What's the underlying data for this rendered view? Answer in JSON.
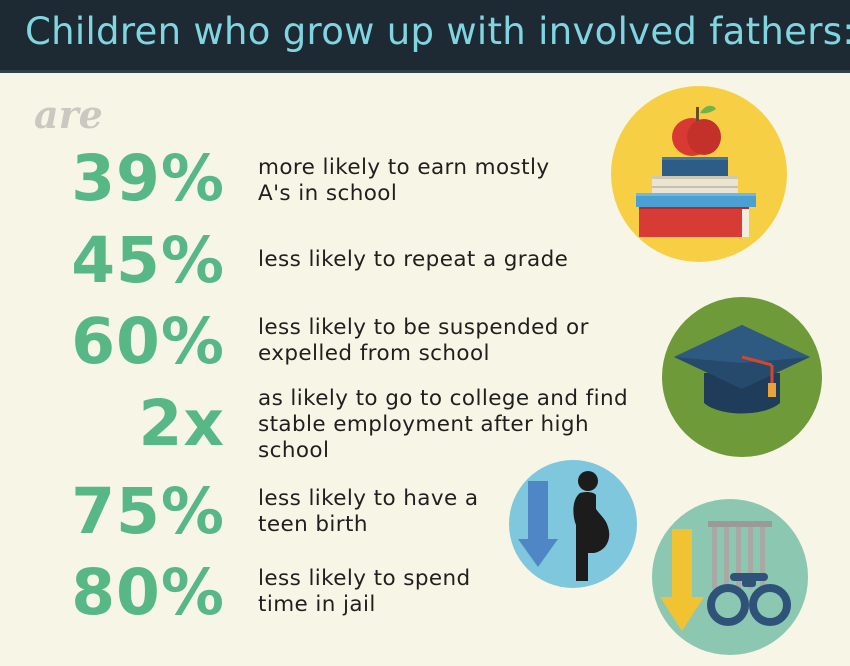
{
  "header": {
    "title": "Children who grow up with involved fathers:"
  },
  "intro": "are",
  "stats": [
    {
      "value": "39%",
      "text": "more likely to earn mostly A's in school"
    },
    {
      "value": "45%",
      "text": "less likely to repeat a grade"
    },
    {
      "value": "60%",
      "text": "less likely to be suspended or expelled from school"
    },
    {
      "value": "2x",
      "text": "as likely to go to college and find stable employment after high school"
    },
    {
      "value": "75%",
      "text": "less likely to have a teen birth"
    },
    {
      "value": "80%",
      "text": "less likely to spend time in jail"
    }
  ],
  "icons": {
    "books": "apple-books-icon",
    "graduation": "graduation-cap-icon",
    "pregnancy": "pregnancy-down-arrow-icon",
    "jail": "jail-handcuffs-icon"
  },
  "colors": {
    "header_bg": "#1e2a33",
    "header_text": "#7fd6e1",
    "stat_green": "#57b886",
    "background": "#f7f5e6"
  }
}
